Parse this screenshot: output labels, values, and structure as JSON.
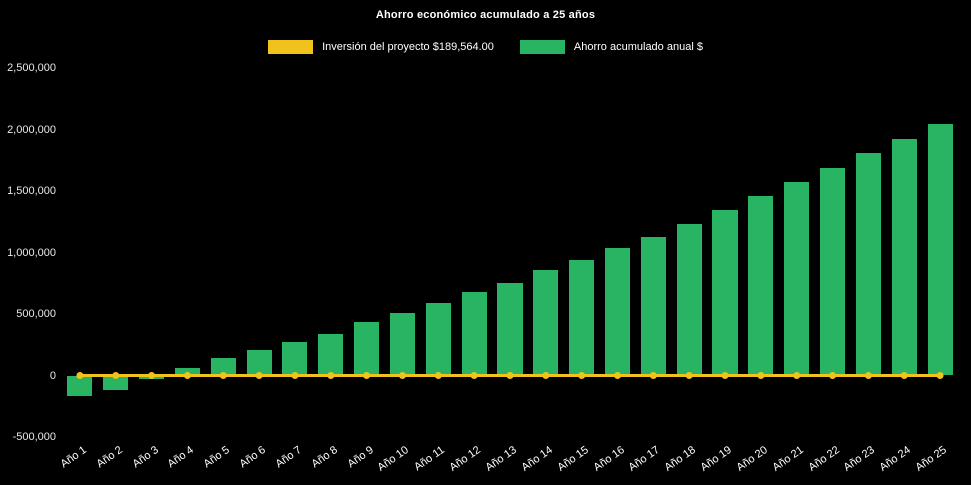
{
  "chart_data": {
    "type": "bar",
    "title": "Ahorro económico acumulado a 25 años",
    "background": "#000000",
    "categories": [
      "Año 1",
      "Año 2",
      "Año 3",
      "Año 4",
      "Año 5",
      "Año 6",
      "Año 7",
      "Año 8",
      "Año 9",
      "Año 10",
      "Año 11",
      "Año 12",
      "Año 13",
      "Año 14",
      "Año 15",
      "Año 16",
      "Año 17",
      "Año 18",
      "Año 19",
      "Año 20",
      "Año 21",
      "Año 22",
      "Año 23",
      "Año 24",
      "Año 25"
    ],
    "series": [
      {
        "name": "Inversión del proyecto $189,564.00",
        "type": "line",
        "color": "#f1c21b",
        "marker": "circle",
        "values": [
          0,
          0,
          0,
          0,
          0,
          0,
          0,
          0,
          0,
          0,
          0,
          0,
          0,
          0,
          0,
          0,
          0,
          0,
          0,
          0,
          0,
          0,
          0,
          0,
          0
        ]
      },
      {
        "name": "Ahorro acumulado anual $",
        "type": "bar",
        "color": "#28b463",
        "values": [
          -170000,
          -115000,
          -25000,
          65000,
          145000,
          210000,
          275000,
          340000,
          435000,
          510000,
          590000,
          675000,
          755000,
          860000,
          940000,
          1040000,
          1130000,
          1235000,
          1345000,
          1460000,
          1575000,
          1690000,
          1810000,
          1925000,
          2045000
        ]
      }
    ],
    "ylim": [
      -500000,
      2500000
    ],
    "yticks": [
      {
        "value": 2500000,
        "label": "2,500,000"
      },
      {
        "value": 2000000,
        "label": "2,000,000"
      },
      {
        "value": 1500000,
        "label": "1,500,000"
      },
      {
        "value": 1000000,
        "label": "1,000,000"
      },
      {
        "value": 500000,
        "label": "500,000"
      },
      {
        "value": 0,
        "label": "0"
      },
      {
        "value": -500000,
        "label": "-500,000"
      }
    ],
    "xlabel": "",
    "ylabel": "",
    "grid": false,
    "legend_position": "top"
  }
}
